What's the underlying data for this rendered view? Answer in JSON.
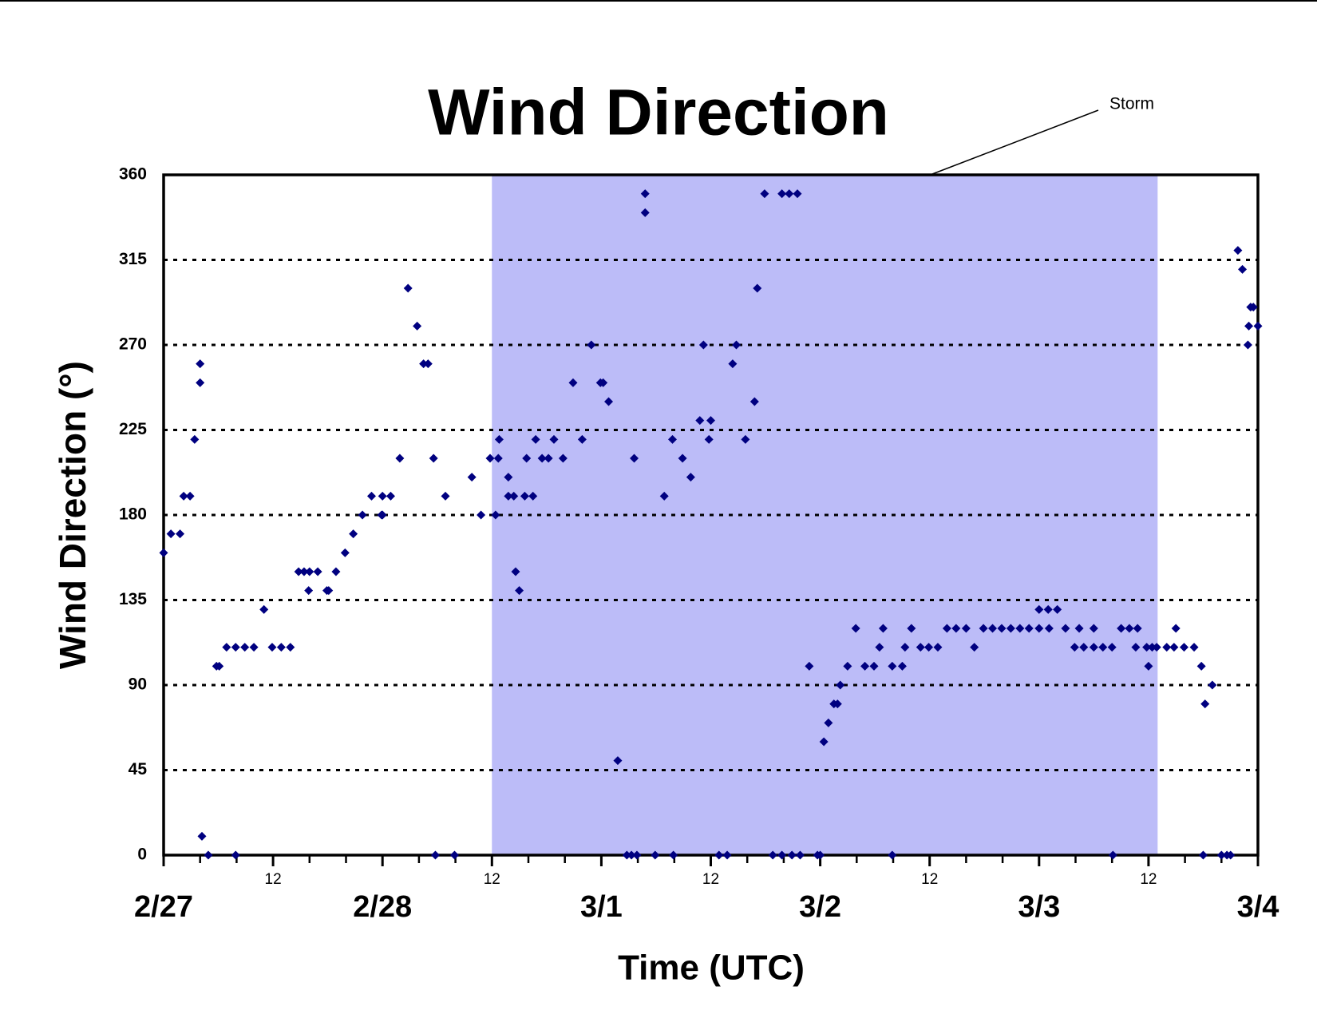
{
  "chart_data": {
    "type": "scatter",
    "title": "Wind Direction",
    "xlabel": "Time (UTC)",
    "ylabel": "Wind Direction (°)",
    "annotation": {
      "text": "Storm",
      "xspan": [
        36,
        109
      ],
      "color": "#bcbcf8"
    },
    "xlim": [
      0,
      120
    ],
    "ylim": [
      0,
      360
    ],
    "xticks": [
      {
        "value": 0,
        "label": "2/27"
      },
      12,
      {
        "value": 24,
        "label": "2/28"
      },
      {
        "value": 36,
        "label": "12"
      },
      {
        "value": 48,
        "label": "3/1"
      },
      {
        "value": 60,
        "label": "12"
      },
      {
        "value": 72,
        "label": "3/2"
      },
      {
        "value": 84,
        "label": "12"
      },
      {
        "value": 96,
        "label": "3/3"
      },
      {
        "value": 108,
        "label": "12"
      },
      {
        "value": 120,
        "label": "3/4"
      }
    ],
    "minor_xticks": [
      4,
      8,
      16,
      20,
      28,
      32,
      40,
      44,
      52,
      56,
      64,
      68,
      76,
      80,
      88,
      92,
      100,
      104,
      112,
      116
    ],
    "yticks": [
      0,
      45,
      90,
      135,
      180,
      225,
      270,
      315,
      360
    ],
    "grid": true,
    "series": [
      {
        "color": "#000080",
        "x": [
          0,
          0.8,
          1.8,
          2.2,
          2.9,
          3.4,
          4.0,
          4.0,
          4.2,
          4.9,
          5.8,
          6.1,
          6.9,
          7.9,
          7.9,
          8.9,
          9.9,
          11,
          11.9,
          12.9,
          13.9,
          14.8,
          15.4,
          16,
          16.9,
          15.9,
          17.9,
          18.1,
          18.9,
          19.9,
          20.8,
          21.8,
          22.8,
          23.9,
          24,
          24,
          24.9,
          25.9,
          26.8,
          27.8,
          28.5,
          29,
          29.6,
          29.8,
          30.9,
          31.9,
          33.8,
          34.8,
          35.8,
          36.4,
          36.7,
          36.8,
          37.8,
          37.8,
          38.4,
          38.6,
          39,
          39.6,
          40.5,
          39.8,
          40.8,
          41.5,
          42.2,
          42.8,
          43.8,
          44.9,
          45.9,
          46.9,
          47.9,
          48.2,
          48.8,
          49.8,
          50.8,
          51.3,
          51.9,
          51.6,
          52.8,
          52.8,
          53.9,
          54.9,
          55.8,
          55.9,
          56.9,
          57.8,
          58.8,
          59.2,
          59.8,
          60,
          60.9,
          61.8,
          62.4,
          62.8,
          63.8,
          64.8,
          65.1,
          65.9,
          66.8,
          67.8,
          68.6,
          69.5,
          67.8,
          68.9,
          69.8,
          70.8,
          71.7,
          72,
          72.4,
          72.9,
          73.5,
          73.9,
          74.2,
          75,
          75.9,
          76.9,
          77.9,
          78.5,
          78.9,
          79.9,
          81,
          79.9,
          81.3,
          82,
          83,
          83.9,
          84.9,
          85.9,
          86.9,
          88,
          88.9,
          89.9,
          90.9,
          91.9,
          92.9,
          93.9,
          94.9,
          96,
          97,
          98,
          96,
          97.1,
          98.9,
          99.9,
          100.9,
          102,
          103,
          104,
          100.4,
          102,
          104.1,
          105,
          105.9,
          106.8,
          106.6,
          108,
          107.8,
          108.4,
          108.9,
          110,
          110.8,
          111.9,
          113,
          111,
          113.8,
          114.2,
          114,
          115,
          116,
          116.6,
          117,
          117.8,
          118.3,
          118.9,
          119.2,
          119.5,
          119,
          120
        ],
        "values": [
          160,
          170,
          170,
          190,
          190,
          220,
          250,
          260,
          10,
          0,
          100,
          100,
          110,
          110,
          0,
          110,
          110,
          130,
          110,
          110,
          110,
          150,
          150,
          150,
          150,
          140,
          140,
          140,
          150,
          160,
          170,
          180,
          190,
          180,
          180,
          190,
          190,
          210,
          300,
          280,
          260,
          260,
          210,
          0,
          190,
          0,
          200,
          180,
          210,
          180,
          210,
          220,
          200,
          190,
          190,
          150,
          140,
          190,
          190,
          210,
          220,
          210,
          210,
          220,
          210,
          250,
          220,
          270,
          250,
          250,
          240,
          50,
          0,
          0,
          0,
          210,
          350,
          340,
          0,
          190,
          220,
          0,
          210,
          200,
          230,
          270,
          220,
          230,
          0,
          0,
          260,
          270,
          220,
          240,
          300,
          350,
          0,
          350,
          350,
          350,
          0,
          0,
          0,
          100,
          0,
          0,
          60,
          70,
          80,
          80,
          90,
          100,
          120,
          100,
          100,
          110,
          120,
          100,
          100,
          0,
          110,
          120,
          110,
          110,
          110,
          120,
          120,
          120,
          110,
          120,
          120,
          120,
          120,
          120,
          120,
          130,
          130,
          130,
          120,
          120,
          120,
          110,
          110,
          110,
          110,
          110,
          120,
          120,
          0,
          120,
          120,
          120,
          110,
          100,
          110,
          110,
          110,
          110,
          110,
          110,
          110,
          120,
          100,
          80,
          0,
          90,
          0,
          0,
          0,
          320,
          310,
          270,
          290,
          290,
          280,
          280
        ]
      }
    ]
  }
}
